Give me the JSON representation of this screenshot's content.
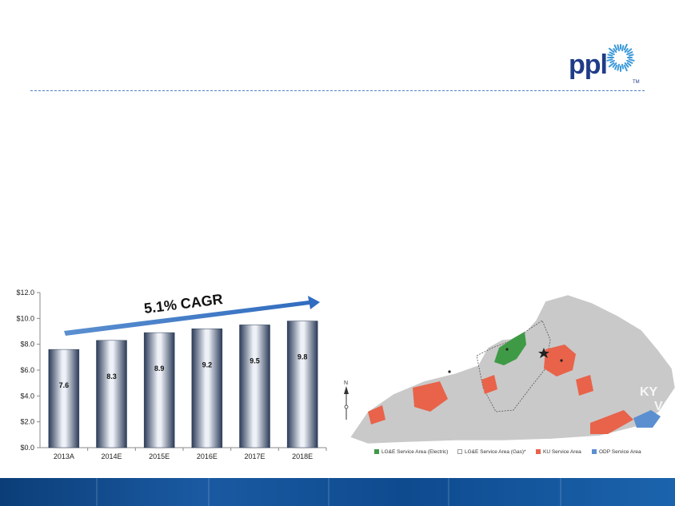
{
  "brand": {
    "logo_text": "ppl",
    "trademark": "TM"
  },
  "chart_data": {
    "type": "bar",
    "categories": [
      "2013A",
      "2014E",
      "2015E",
      "2016E",
      "2017E",
      "2018E"
    ],
    "values": [
      7.6,
      8.3,
      8.9,
      9.2,
      9.5,
      9.8
    ],
    "data_labels": [
      "7.6",
      "8.3",
      "8.9",
      "9.2",
      "9.5",
      "9.8"
    ],
    "ylim": [
      0,
      12
    ],
    "yticks": [
      0,
      2,
      4,
      6,
      8,
      10,
      12
    ],
    "ytick_labels": [
      "$0.0",
      "$2.0",
      "$4.0",
      "$6.0",
      "$8.0",
      "$10.0",
      "$12.0"
    ],
    "annotation": "5.1% CAGR",
    "grid": false,
    "bar_color": "#2b3b58"
  },
  "map": {
    "state_labels": [
      "KY",
      "VA"
    ],
    "legend": [
      {
        "label": "LG&E Service Area (Electric)",
        "color": "#3f9a46"
      },
      {
        "label": "LG&E Service Area (Gas)*",
        "color": "#ffffff"
      },
      {
        "label": "KU Service Area",
        "color": "#e8634a"
      },
      {
        "label": "ODP Service Area",
        "color": "#5b8fd0"
      }
    ],
    "north_label": "N"
  },
  "colors": {
    "accent_blue": "#1f3c88",
    "arrow_blue": "#3f78c6",
    "map_gray": "#c9c9c9"
  }
}
